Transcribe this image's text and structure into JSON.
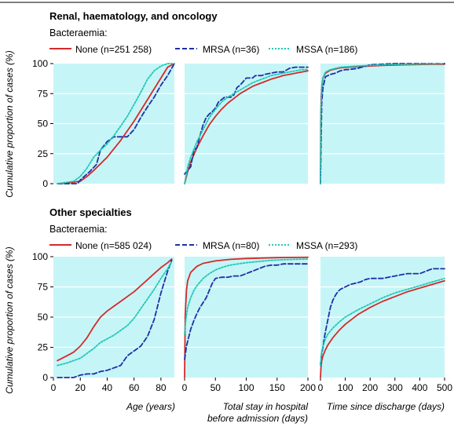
{
  "colors": {
    "panel_bg": "#c6f5f7",
    "none": "#d42a2a",
    "mrsa": "#1f2fa8",
    "mssa": "#1fc9b4"
  },
  "ylabel": "Cumulative proportion of cases (%)",
  "xlabels": {
    "age": "Age (years)",
    "stay_line1": "Total stay in hospital",
    "stay_line2": "before admission (days)",
    "discharge": "Time since discharge (days)"
  },
  "chart_data": [
    {
      "type": "line",
      "title": "Renal, haematology, and oncology",
      "legend_title": "Bacteraemia:",
      "legend": [
        "None (n=251 258)",
        "MRSA (n=36)",
        "MSSA (n=186)"
      ],
      "panels": [
        {
          "key": "age",
          "xlim": [
            0,
            90
          ],
          "ylim": [
            0,
            100
          ],
          "xticks": [],
          "yticks": [
            0,
            25,
            50,
            75,
            100
          ],
          "series": [
            {
              "name": "None (n=251 258)",
              "x": [
                3,
                10,
                20,
                25,
                30,
                40,
                50,
                60,
                70,
                80,
                85,
                90
              ],
              "y": [
                0,
                0.5,
                2,
                6,
                11,
                22,
                36,
                52,
                70,
                88,
                97,
                100
              ]
            },
            {
              "name": "MRSA (n=36)",
              "x": [
                3,
                18,
                20,
                22,
                27,
                32,
                35,
                40,
                45,
                50,
                55,
                60,
                65,
                70,
                75,
                80,
                85,
                90
              ],
              "y": [
                0,
                0,
                3,
                5,
                10,
                16,
                28,
                35,
                39,
                39,
                39,
                45,
                55,
                64,
                72,
                82,
                90,
                100
              ]
            },
            {
              "name": "MSSA (n=186)",
              "x": [
                3,
                15,
                20,
                25,
                30,
                35,
                40,
                45,
                50,
                55,
                60,
                65,
                70,
                75,
                80,
                85,
                90
              ],
              "y": [
                0,
                2,
                6,
                13,
                22,
                28,
                33,
                40,
                48,
                56,
                66,
                76,
                87,
                94,
                98,
                100,
                100
              ]
            }
          ]
        },
        {
          "key": "stay",
          "xlim": [
            0,
            200
          ],
          "ylim": [
            0,
            100
          ],
          "xticks": [],
          "yticks": [],
          "series": [
            {
              "name": "None (n=251 258)",
              "x": [
                0,
                5,
                10,
                20,
                30,
                40,
                50,
                60,
                70,
                80,
                90,
                100,
                110,
                120,
                130,
                140,
                150,
                160,
                170,
                180,
                190,
                200
              ],
              "y": [
                0,
                10,
                18,
                30,
                40,
                49,
                56,
                62,
                67,
                71,
                75,
                78,
                81,
                83,
                85,
                87,
                88.5,
                90,
                91,
                92,
                93,
                94
              ]
            },
            {
              "name": "MRSA (n=36)",
              "x": [
                0,
                5,
                10,
                15,
                20,
                25,
                30,
                35,
                40,
                45,
                50,
                55,
                60,
                65,
                70,
                75,
                80,
                85,
                90,
                95,
                100,
                105,
                110,
                115,
                120,
                125,
                130,
                140,
                150,
                160,
                170,
                180,
                190,
                200
              ],
              "y": [
                8,
                11,
                14,
                28,
                30,
                40,
                49,
                55,
                58,
                60,
                63,
                68,
                70,
                72,
                72,
                72,
                74,
                80,
                82,
                85,
                88,
                88,
                88,
                90,
                90,
                90,
                91,
                92,
                93,
                93,
                96,
                97,
                97,
                97
              ]
            },
            {
              "name": "MSSA (n=186)",
              "x": [
                0,
                5,
                10,
                20,
                30,
                40,
                50,
                60,
                70,
                80,
                90,
                100,
                110,
                120,
                130,
                140,
                150,
                160,
                170,
                180,
                190,
                200
              ],
              "y": [
                0,
                14,
                22,
                35,
                45,
                55,
                62,
                68,
                72,
                75,
                78,
                81,
                84,
                86,
                88,
                90,
                91,
                92,
                93,
                94,
                95,
                95
              ]
            }
          ]
        },
        {
          "key": "discharge",
          "xlim": [
            0,
            500
          ],
          "ylim": [
            0,
            100
          ],
          "xticks": [],
          "yticks": [],
          "series": [
            {
              "name": "None (n=251 258)",
              "x": [
                0,
                1,
                3,
                6,
                10,
                20,
                40,
                80,
                150,
                250,
                350,
                450,
                500
              ],
              "y": [
                0,
                50,
                72,
                82,
                88,
                92,
                94.5,
                96.5,
                97.5,
                98.5,
                99,
                99.5,
                99.5
              ]
            },
            {
              "name": "MRSA (n=36)",
              "x": [
                0,
                5,
                10,
                20,
                40,
                60,
                80,
                100,
                110,
                150,
                200,
                300,
                400,
                500
              ],
              "y": [
                0,
                68,
                80,
                89,
                91,
                92,
                94,
                95,
                95,
                96,
                99,
                100,
                100,
                100
              ]
            },
            {
              "name": "MSSA (n=186)",
              "x": [
                0,
                2,
                5,
                10,
                20,
                40,
                80,
                150,
                250,
                350,
                500
              ],
              "y": [
                0,
                60,
                80,
                88,
                93,
                95,
                97,
                98,
                99,
                99.5,
                100
              ]
            }
          ]
        }
      ]
    },
    {
      "type": "line",
      "title": "Other specialties",
      "legend_title": "Bacteraemia:",
      "legend": [
        "None (n=585 024)",
        "MRSA (n=80)",
        "MSSA (n=293)"
      ],
      "panels": [
        {
          "key": "age",
          "xlim": [
            0,
            90
          ],
          "ylim": [
            0,
            100
          ],
          "xticks": [
            0,
            20,
            40,
            60,
            80
          ],
          "yticks": [
            0,
            25,
            50,
            75,
            100
          ],
          "series": [
            {
              "name": "None (n=585 024)",
              "x": [
                3,
                10,
                15,
                20,
                25,
                30,
                35,
                40,
                45,
                50,
                55,
                60,
                65,
                70,
                75,
                80,
                85,
                88
              ],
              "y": [
                14,
                18,
                21,
                26,
                33,
                42,
                50,
                55,
                59,
                63,
                67,
                71,
                76,
                81,
                86,
                91,
                95,
                98
              ]
            },
            {
              "name": "MRSA (n=80)",
              "x": [
                3,
                15,
                20,
                25,
                30,
                35,
                40,
                45,
                50,
                55,
                60,
                65,
                70,
                75,
                80,
                85,
                88
              ],
              "y": [
                0,
                0,
                2,
                3,
                3,
                5,
                6,
                8,
                10,
                18,
                22,
                26,
                34,
                48,
                70,
                88,
                97
              ]
            },
            {
              "name": "MSSA (n=293)",
              "x": [
                3,
                10,
                15,
                20,
                25,
                30,
                35,
                40,
                45,
                50,
                55,
                60,
                65,
                70,
                75,
                80,
                85,
                88
              ],
              "y": [
                10,
                12,
                14,
                16,
                20,
                24,
                29,
                32,
                35,
                39,
                43,
                49,
                57,
                65,
                73,
                82,
                90,
                96
              ]
            }
          ]
        },
        {
          "key": "stay",
          "xlim": [
            0,
            200
          ],
          "ylim": [
            0,
            100
          ],
          "xticks": [
            0,
            50,
            100,
            150,
            200
          ],
          "yticks": [],
          "series": [
            {
              "name": "None (n=585 024)",
              "x": [
                0,
                1,
                3,
                5,
                10,
                20,
                30,
                50,
                75,
                100,
                150,
                200
              ],
              "y": [
                0,
                52,
                72,
                80,
                87,
                92,
                94.5,
                96.5,
                97.8,
                98.5,
                99.2,
                99.5
              ]
            },
            {
              "name": "MRSA (n=80)",
              "x": [
                0,
                3,
                6,
                10,
                15,
                20,
                25,
                30,
                35,
                40,
                45,
                50,
                60,
                70,
                80,
                90,
                100,
                110,
                120,
                130,
                140,
                150,
                160,
                170,
                180,
                190,
                200
              ],
              "y": [
                15,
                26,
                32,
                40,
                47,
                53,
                58,
                62,
                66,
                72,
                78,
                82,
                83,
                83,
                84,
                84,
                86,
                88,
                90,
                92,
                93,
                93,
                94,
                94,
                94,
                94,
                94
              ]
            },
            {
              "name": "MSSA (n=293)",
              "x": [
                0,
                2,
                5,
                10,
                15,
                20,
                30,
                40,
                50,
                60,
                70,
                80,
                100,
                120,
                140,
                160,
                180,
                200
              ],
              "y": [
                36,
                48,
                58,
                66,
                72,
                76,
                82,
                86,
                89,
                91,
                92.5,
                93.5,
                95,
                96,
                97,
                97.5,
                97.8,
                98
              ]
            }
          ]
        },
        {
          "key": "discharge",
          "xlim": [
            0,
            500
          ],
          "ylim": [
            0,
            100
          ],
          "xticks": [
            0,
            100,
            200,
            300,
            400,
            500
          ],
          "yticks": [],
          "series": [
            {
              "name": "None (n=585 024)",
              "x": [
                0,
                2,
                5,
                10,
                20,
                30,
                50,
                75,
                100,
                150,
                200,
                250,
                300,
                350,
                400,
                450,
                500
              ],
              "y": [
                0,
                8,
                14,
                18,
                23,
                27,
                33,
                39,
                44,
                52,
                58,
                63,
                67,
                71,
                74,
                77,
                80
              ]
            },
            {
              "name": "MRSA (n=80)",
              "x": [
                0,
                2,
                5,
                10,
                15,
                20,
                30,
                40,
                50,
                60,
                70,
                80,
                100,
                120,
                140,
                160,
                180,
                200,
                250,
                300,
                350,
                400,
                450,
                500
              ],
              "y": [
                10,
                15,
                20,
                25,
                32,
                38,
                48,
                58,
                64,
                68,
                71,
                73,
                75,
                77,
                78,
                79,
                81,
                82,
                82,
                84,
                86,
                86,
                90,
                90
              ]
            },
            {
              "name": "MSSA (n=293)",
              "x": [
                0,
                2,
                5,
                10,
                20,
                30,
                50,
                75,
                100,
                150,
                200,
                250,
                300,
                350,
                400,
                450,
                500
              ],
              "y": [
                10,
                16,
                21,
                26,
                32,
                36,
                41,
                46,
                50,
                56,
                61,
                66,
                70,
                73,
                76,
                79,
                82
              ]
            }
          ]
        }
      ]
    }
  ]
}
